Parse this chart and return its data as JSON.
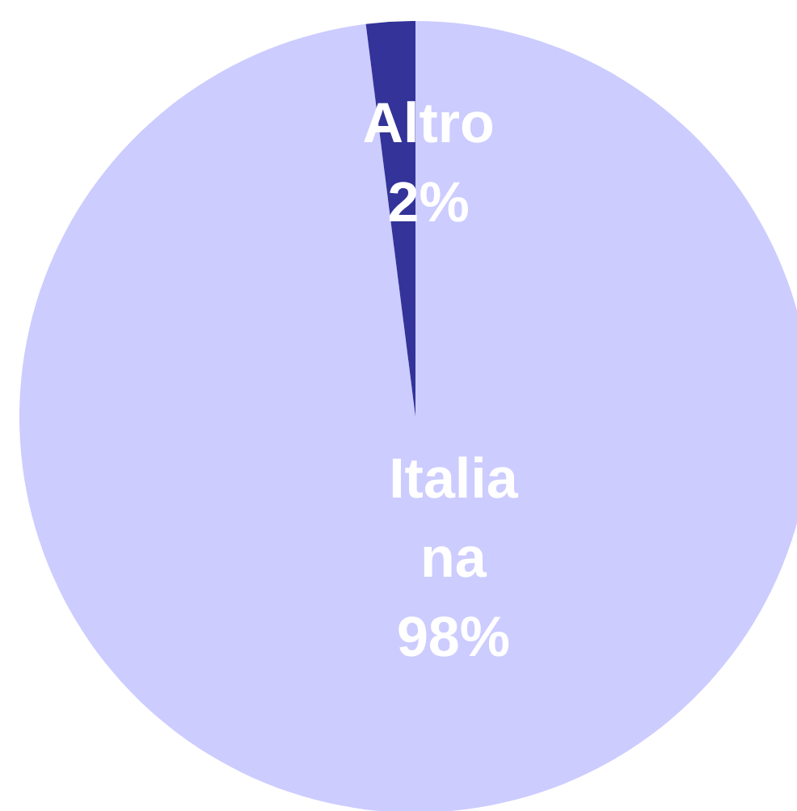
{
  "chart_data": {
    "type": "pie",
    "categories": [
      "Italiana",
      "Altro"
    ],
    "values": [
      98,
      2
    ],
    "colors": [
      "#ccccff",
      "#333399"
    ],
    "value_labels": [
      "98%",
      "2%"
    ]
  }
}
